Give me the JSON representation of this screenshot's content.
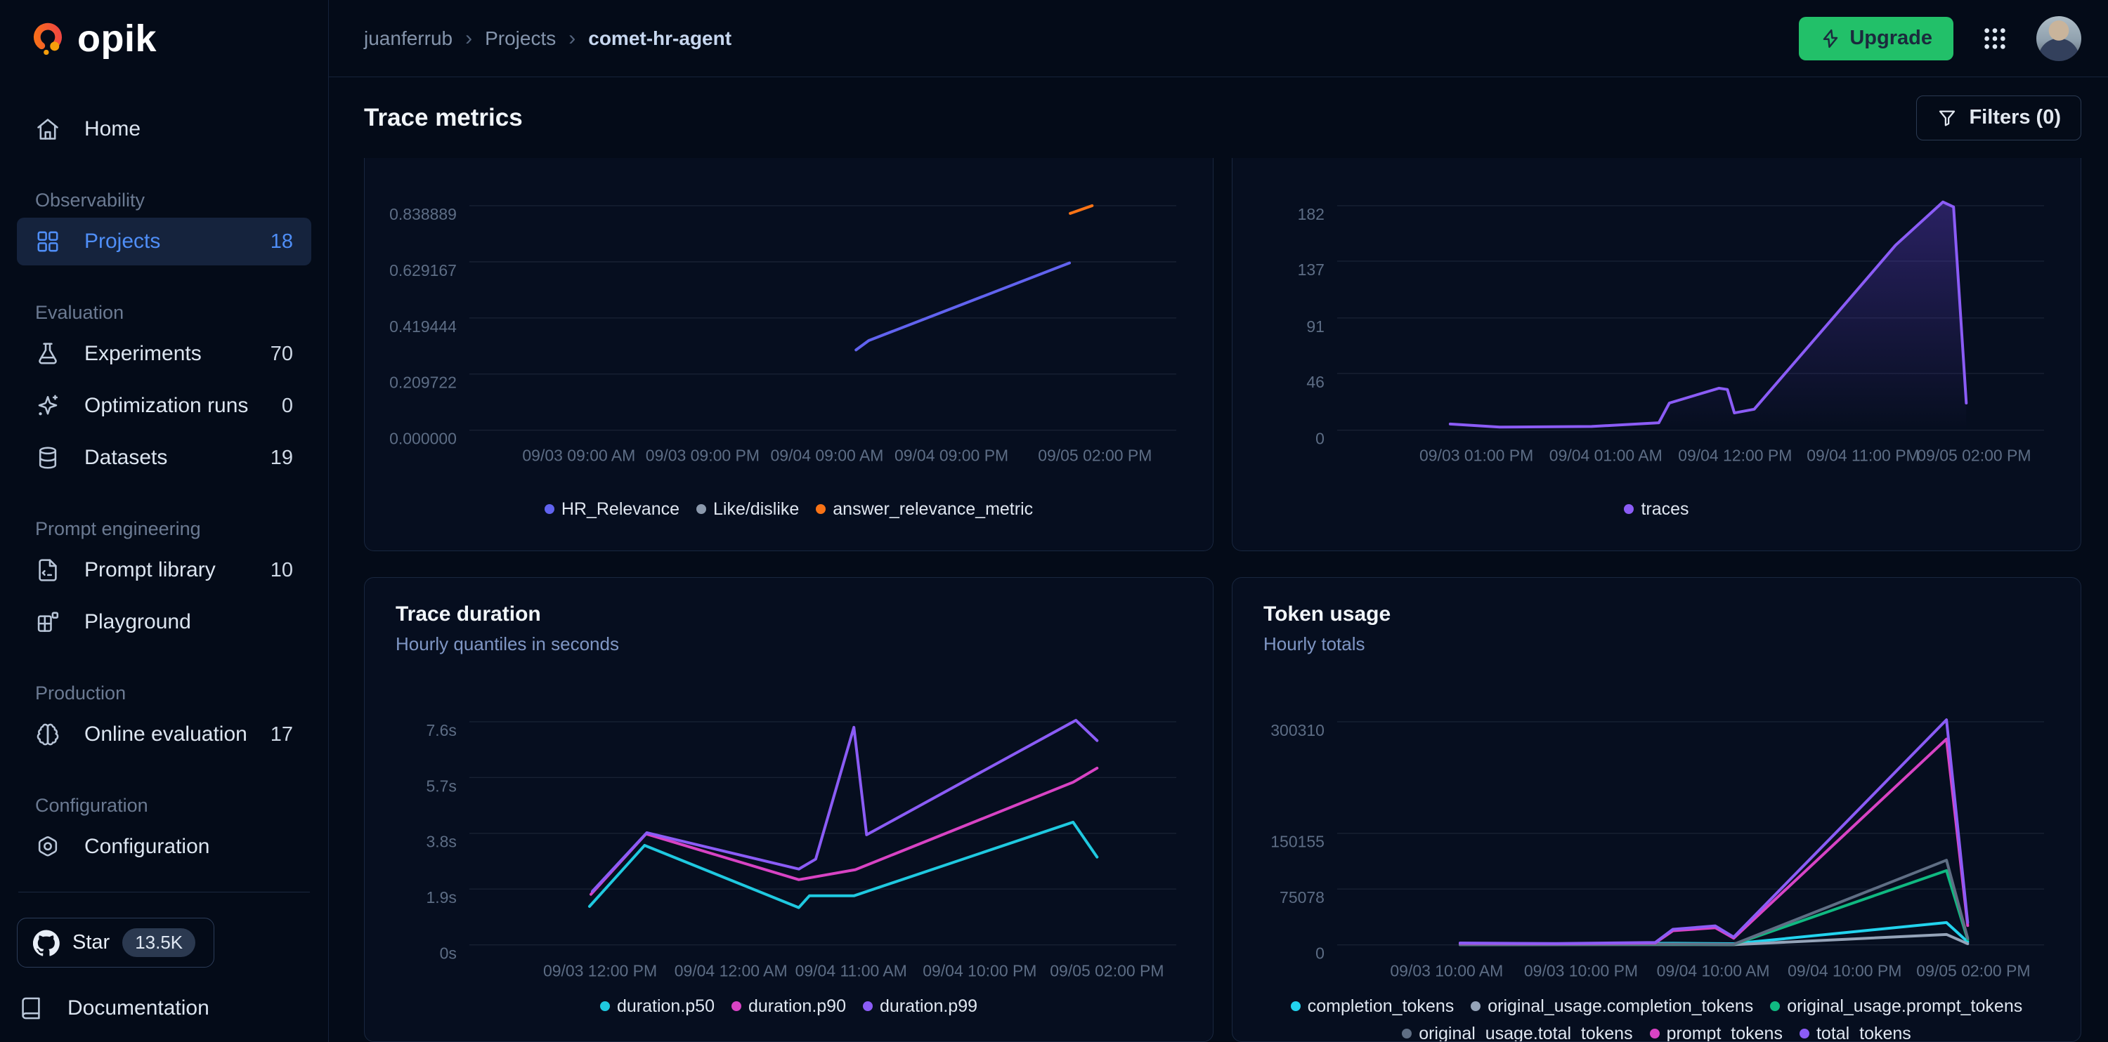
{
  "logo": {
    "text": "opik"
  },
  "breadcrumb": {
    "items": [
      "juanferrub",
      "Projects",
      "comet-hr-agent"
    ],
    "separator": "›"
  },
  "topbar": {
    "upgrade_label": "Upgrade"
  },
  "page": {
    "title": "Trace metrics",
    "filters_label": "Filters (0)"
  },
  "sidebar": {
    "items": [
      {
        "type": "link",
        "icon": "home",
        "label": "Home"
      },
      {
        "type": "section",
        "label": "Observability"
      },
      {
        "type": "link",
        "icon": "grid",
        "label": "Projects",
        "count": "18",
        "active": true
      },
      {
        "type": "section",
        "label": "Evaluation"
      },
      {
        "type": "link",
        "icon": "flask",
        "label": "Experiments",
        "count": "70"
      },
      {
        "type": "link",
        "icon": "sparkles",
        "label": "Optimization runs",
        "count": "0"
      },
      {
        "type": "link",
        "icon": "database",
        "label": "Datasets",
        "count": "19"
      },
      {
        "type": "section",
        "label": "Prompt engineering"
      },
      {
        "type": "link",
        "icon": "file-code",
        "label": "Prompt library",
        "count": "10"
      },
      {
        "type": "link",
        "icon": "playground",
        "label": "Playground"
      },
      {
        "type": "section",
        "label": "Production"
      },
      {
        "type": "link",
        "icon": "brain",
        "label": "Online evaluation",
        "count": "17"
      },
      {
        "type": "section",
        "label": "Configuration"
      },
      {
        "type": "link",
        "icon": "gear",
        "label": "Configuration"
      }
    ],
    "star": {
      "label": "Star",
      "badge": "13.5K"
    },
    "docs_label": "Documentation"
  },
  "colors": {
    "accent_blue": "#4f8ef7",
    "upgrade_green": "#22c069",
    "indigo": "#6163ef",
    "orange": "#f97316",
    "violet": "#8b5cf6",
    "cyan": "#1fc9e0",
    "magenta": "#d843c4",
    "green": "#10b981",
    "gray": "#5f6e84",
    "lightgray": "#94a3b8"
  },
  "chart_data": [
    {
      "id": "feedback_scores",
      "type": "line",
      "row": 1,
      "title": null,
      "subtitle": null,
      "ylim": [
        0,
        0.838889
      ],
      "grid": true,
      "legend_position": "bottom",
      "y_ticks": [
        {
          "label": "0.838889",
          "value": 0.838889
        },
        {
          "label": "0.629167",
          "value": 0.629167
        },
        {
          "label": "0.419444",
          "value": 0.419444
        },
        {
          "label": "0.209722",
          "value": 0.209722
        },
        {
          "label": "0.000000",
          "value": 0
        }
      ],
      "x_ticks": [
        {
          "label": "09/03 09:00 AM",
          "x": 0.155
        },
        {
          "label": "09/03 09:00 PM",
          "x": 0.33
        },
        {
          "label": "09/04 09:00 AM",
          "x": 0.506
        },
        {
          "label": "09/04 09:00 PM",
          "x": 0.682
        },
        {
          "label": "09/05 02:00 PM",
          "x": 0.885
        }
      ],
      "series": [
        {
          "name": "HR_Relevance",
          "color": "#6163ef",
          "points": [
            [
              0.547,
              0.3
            ],
            [
              0.565,
              0.335
            ],
            [
              0.849,
              0.625
            ]
          ]
        },
        {
          "name": "Like/dislike",
          "color": "#8b99ad",
          "points": []
        },
        {
          "name": "answer_relevance_metric",
          "color": "#f97316",
          "points": [
            [
              0.85,
              0.81
            ],
            [
              0.881,
              0.839
            ]
          ]
        }
      ],
      "legend": [
        {
          "label": "HR_Relevance",
          "color": "#6163ef"
        },
        {
          "label": "Like/dislike",
          "color": "#8b99ad"
        },
        {
          "label": "answer_relevance_metric",
          "color": "#f97316"
        }
      ]
    },
    {
      "id": "traces",
      "type": "line",
      "row": 1,
      "title": null,
      "subtitle": null,
      "ylim": [
        0,
        182
      ],
      "grid": true,
      "legend_position": "bottom",
      "y_ticks": [
        {
          "label": "182",
          "value": 182
        },
        {
          "label": "137",
          "value": 137
        },
        {
          "label": "91",
          "value": 91
        },
        {
          "label": "46",
          "value": 46
        },
        {
          "label": "0",
          "value": 0
        }
      ],
      "x_ticks": [
        {
          "label": "09/03 01:00 PM",
          "x": 0.197
        },
        {
          "label": "09/04 01:00 AM",
          "x": 0.38
        },
        {
          "label": "09/04 12:00 PM",
          "x": 0.563
        },
        {
          "label": "09/04 11:00 PM",
          "x": 0.744
        },
        {
          "label": "09/05 02:00 PM",
          "x": 0.901
        }
      ],
      "series": [
        {
          "name": "traces",
          "color": "#8b5cf6",
          "fill": true,
          "points": [
            [
              0.16,
              5
            ],
            [
              0.23,
              2.5
            ],
            [
              0.36,
              3
            ],
            [
              0.455,
              6
            ],
            [
              0.47,
              22
            ],
            [
              0.54,
              34
            ],
            [
              0.552,
              33
            ],
            [
              0.562,
              14
            ],
            [
              0.59,
              17
            ],
            [
              0.7,
              90
            ],
            [
              0.79,
              150
            ],
            [
              0.857,
              185
            ],
            [
              0.872,
              181
            ],
            [
              0.89,
              22
            ]
          ]
        }
      ],
      "legend": [
        {
          "label": "traces",
          "color": "#8b5cf6"
        }
      ]
    },
    {
      "id": "trace_duration",
      "type": "line",
      "row": 2,
      "title": "Trace duration",
      "subtitle": "Hourly quantiles in seconds",
      "ylim": [
        0,
        7.6
      ],
      "grid": true,
      "legend_position": "bottom",
      "y_ticks": [
        {
          "label": "7.6s",
          "value": 7.6
        },
        {
          "label": "5.7s",
          "value": 5.7
        },
        {
          "label": "3.8s",
          "value": 3.8
        },
        {
          "label": "1.9s",
          "value": 1.9
        },
        {
          "label": "0s",
          "value": 0
        }
      ],
      "x_ticks": [
        {
          "label": "09/03 12:00 PM",
          "x": 0.185
        },
        {
          "label": "09/04 12:00 AM",
          "x": 0.37
        },
        {
          "label": "09/04 11:00 AM",
          "x": 0.54
        },
        {
          "label": "09/04 10:00 PM",
          "x": 0.722
        },
        {
          "label": "09/05 02:00 PM",
          "x": 0.902
        }
      ],
      "series": [
        {
          "name": "duration.p50",
          "color": "#1fc9e0",
          "points": [
            [
              0.17,
              1.31
            ],
            [
              0.248,
              3.39
            ],
            [
              0.466,
              1.27
            ],
            [
              0.481,
              1.67
            ],
            [
              0.544,
              1.67
            ],
            [
              0.854,
              4.18
            ],
            [
              0.888,
              2.99
            ]
          ]
        },
        {
          "name": "duration.p90",
          "color": "#d843c4",
          "points": [
            [
              0.172,
              1.72
            ],
            [
              0.25,
              3.78
            ],
            [
              0.466,
              2.22
            ],
            [
              0.546,
              2.56
            ],
            [
              0.854,
              5.54
            ],
            [
              0.888,
              6.02
            ]
          ]
        },
        {
          "name": "duration.p99",
          "color": "#8b5cf6",
          "points": [
            [
              0.174,
              1.82
            ],
            [
              0.251,
              3.82
            ],
            [
              0.466,
              2.58
            ],
            [
              0.49,
              2.92
            ],
            [
              0.544,
              7.41
            ],
            [
              0.562,
              3.75
            ],
            [
              0.858,
              7.65
            ],
            [
              0.888,
              6.96
            ]
          ]
        }
      ],
      "legend": [
        {
          "label": "duration.p50",
          "color": "#1fc9e0"
        },
        {
          "label": "duration.p90",
          "color": "#d843c4"
        },
        {
          "label": "duration.p99",
          "color": "#8b5cf6"
        }
      ]
    },
    {
      "id": "token_usage",
      "type": "line",
      "row": 2,
      "title": "Token usage",
      "subtitle": "Hourly totals",
      "ylim": [
        0,
        300310
      ],
      "grid": true,
      "legend_position": "bottom",
      "y_ticks": [
        {
          "label": "300310",
          "value": 300310
        },
        {
          "label": "150155",
          "value": 150155
        },
        {
          "label": "75078",
          "value": 75078
        },
        {
          "label": "0",
          "value": 0
        }
      ],
      "x_ticks": [
        {
          "label": "09/03 10:00 AM",
          "x": 0.155
        },
        {
          "label": "09/03 10:00 PM",
          "x": 0.345
        },
        {
          "label": "09/04 10:00 AM",
          "x": 0.532
        },
        {
          "label": "09/04 10:00 PM",
          "x": 0.718
        },
        {
          "label": "09/05 02:00 PM",
          "x": 0.9
        }
      ],
      "series": [
        {
          "name": "completion_tokens",
          "color": "#22d3ee",
          "points": [
            [
              0.174,
              600
            ],
            [
              0.475,
              2200
            ],
            [
              0.561,
              1500
            ],
            [
              0.862,
              30000
            ],
            [
              0.892,
              4000
            ]
          ]
        },
        {
          "name": "original_usage.completion_tokens",
          "color": "#94a3b8",
          "points": [
            [
              0.174,
              200
            ],
            [
              0.475,
              400
            ],
            [
              0.561,
              300
            ],
            [
              0.862,
              14000
            ],
            [
              0.892,
              1500
            ]
          ]
        },
        {
          "name": "original_usage.prompt_tokens",
          "color": "#10b981",
          "points": [
            [
              0.174,
              350
            ],
            [
              0.475,
              700
            ],
            [
              0.561,
              500
            ],
            [
              0.862,
              100000
            ],
            [
              0.892,
              7000
            ]
          ]
        },
        {
          "name": "original_usage.total_tokens",
          "color": "#5f6e84",
          "points": [
            [
              0.174,
              500
            ],
            [
              0.475,
              1000
            ],
            [
              0.561,
              800
            ],
            [
              0.862,
              114000
            ],
            [
              0.892,
              9000
            ]
          ]
        },
        {
          "name": "prompt_tokens",
          "color": "#d843c4",
          "points": [
            [
              0.174,
              2000
            ],
            [
              0.31,
              1400
            ],
            [
              0.45,
              2600
            ],
            [
              0.475,
              19000
            ],
            [
              0.535,
              23000
            ],
            [
              0.561,
              9000
            ],
            [
              0.862,
              277000
            ],
            [
              0.892,
              26000
            ]
          ]
        },
        {
          "name": "total_tokens",
          "color": "#8b5cf6",
          "points": [
            [
              0.174,
              2500
            ],
            [
              0.31,
              1800
            ],
            [
              0.45,
              3200
            ],
            [
              0.475,
              21000
            ],
            [
              0.535,
              25500
            ],
            [
              0.561,
              10500
            ],
            [
              0.862,
              303000
            ],
            [
              0.892,
              30000
            ]
          ]
        }
      ],
      "legend": [
        {
          "label": "completion_tokens",
          "color": "#22d3ee"
        },
        {
          "label": "original_usage.completion_tokens",
          "color": "#94a3b8"
        },
        {
          "label": "original_usage.prompt_tokens",
          "color": "#10b981"
        },
        {
          "label": "original_usage.total_tokens",
          "color": "#5f6e84"
        },
        {
          "label": "prompt_tokens",
          "color": "#d843c4"
        },
        {
          "label": "total_tokens",
          "color": "#8b5cf6"
        }
      ]
    }
  ]
}
